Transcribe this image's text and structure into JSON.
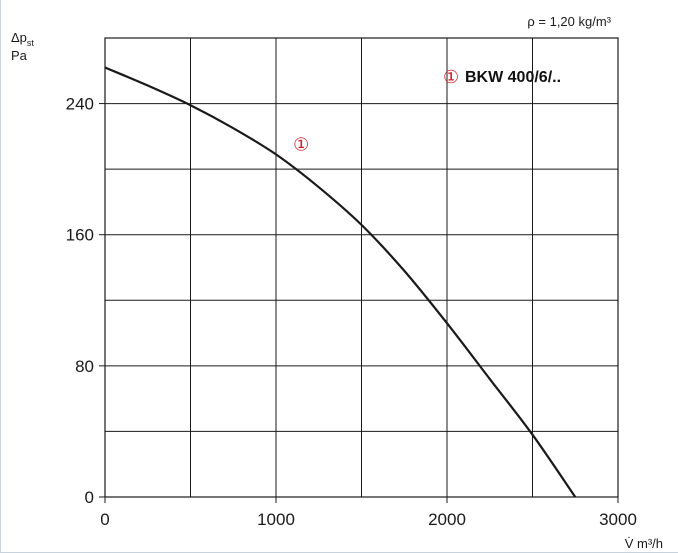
{
  "chart_data": {
    "type": "line",
    "density_note": "ρ = 1,20 kg/m³",
    "ylabel_symbol": "Δp",
    "ylabel_sub": "st",
    "ylabel_unit": "Pa",
    "xlabel": "V̇ m³/h",
    "xlim": [
      0,
      3000
    ],
    "ylim": [
      0,
      280
    ],
    "x_ticks": [
      0,
      1000,
      2000,
      3000
    ],
    "y_ticks": [
      0,
      80,
      160,
      240
    ],
    "x_gridlines": [
      500,
      1000,
      1500,
      2000,
      2500
    ],
    "y_gridlines": [
      40,
      80,
      120,
      160,
      200,
      240
    ],
    "grid": true,
    "curve_color": "#1a1a1a",
    "marker_color": "#d0202a",
    "legend_marker": "①",
    "legend_label": "BKW 400/6/..",
    "curve_marker": "①",
    "curve_marker_at": {
      "x": 1100,
      "y": 215
    },
    "series": [
      {
        "x": [
          0,
          250,
          500,
          750,
          1000,
          1250,
          1500,
          1750,
          2000,
          2250,
          2500,
          2750
        ],
        "y": [
          262,
          251,
          239,
          225,
          209,
          189,
          166,
          138,
          106,
          72,
          38,
          0
        ]
      }
    ]
  }
}
